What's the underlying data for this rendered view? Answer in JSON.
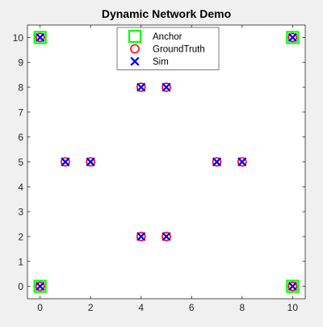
{
  "chart_data": {
    "type": "scatter",
    "title": "Dynamic Network Demo",
    "xlabel": "",
    "ylabel": "",
    "xlim": [
      -0.5,
      10.5
    ],
    "ylim": [
      -0.5,
      10.5
    ],
    "xticks": [
      0,
      2,
      4,
      6,
      8,
      10
    ],
    "yticks": [
      0,
      1,
      2,
      3,
      4,
      5,
      6,
      7,
      8,
      9,
      10
    ],
    "grid": false,
    "legend_position": "top-center",
    "series": [
      {
        "name": "Anchor",
        "marker": "square",
        "color": "#00ff00",
        "points": [
          [
            0,
            0
          ],
          [
            0,
            10
          ],
          [
            10,
            0
          ],
          [
            10,
            10
          ]
        ]
      },
      {
        "name": "GroundTruth",
        "marker": "circle",
        "color": "#ff0000",
        "points": [
          [
            0,
            0
          ],
          [
            0,
            10
          ],
          [
            10,
            0
          ],
          [
            10,
            10
          ],
          [
            1,
            5
          ],
          [
            2,
            5
          ],
          [
            4,
            8
          ],
          [
            5,
            8
          ],
          [
            4,
            2
          ],
          [
            5,
            2
          ],
          [
            7,
            5
          ],
          [
            8,
            5
          ]
        ]
      },
      {
        "name": "Sim",
        "marker": "x",
        "color": "#0000ff",
        "points": [
          [
            0,
            0
          ],
          [
            0,
            10
          ],
          [
            10,
            0
          ],
          [
            10,
            10
          ],
          [
            1,
            5
          ],
          [
            2,
            5
          ],
          [
            4,
            8
          ],
          [
            5,
            8
          ],
          [
            4,
            2
          ],
          [
            5,
            2
          ],
          [
            7,
            5
          ],
          [
            8,
            5
          ]
        ]
      }
    ]
  }
}
